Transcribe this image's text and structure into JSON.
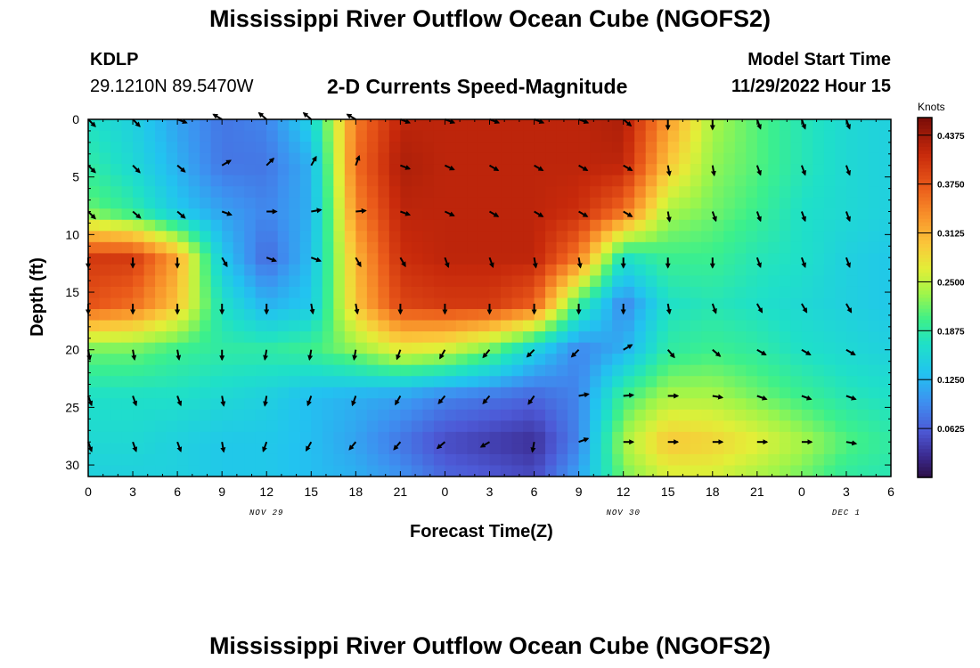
{
  "titles": {
    "top": "Mississippi River Outflow Ocean Cube (NGOFS2)",
    "bottom": "Mississippi River Outflow Ocean Cube (NGOFS2)"
  },
  "station": {
    "id": "KDLP",
    "coords": "29.1210N  89.5470W"
  },
  "model": {
    "label": "Model Start Time",
    "value": "11/29/2022 Hour 15"
  },
  "chart_data": {
    "type": "heatmap",
    "title": "2-D Currents Speed-Magnitude",
    "xlabel": "Forecast Time(Z)",
    "ylabel": "Depth (ft)",
    "x_tick_labels": [
      "0",
      "3",
      "6",
      "9",
      "12",
      "15",
      "18",
      "21",
      "0",
      "3",
      "6",
      "9",
      "12",
      "15",
      "18",
      "21",
      "0",
      "3",
      "6"
    ],
    "x_range_hours": [
      0,
      54
    ],
    "date_labels": [
      {
        "text": "NOV 29",
        "hour": 12
      },
      {
        "text": "NOV 30",
        "hour": 36
      },
      {
        "text": "DEC 1",
        "hour": 51
      }
    ],
    "y_ticks": [
      0,
      5,
      10,
      15,
      20,
      25,
      30
    ],
    "y_range": [
      0,
      31
    ],
    "y_inverted": true,
    "colorbar": {
      "unit": "Knots",
      "tick_labels": [
        "0.4375",
        "0.3750",
        "0.3125",
        "0.2500",
        "0.1875",
        "0.1250",
        "0.0625"
      ],
      "tick_values": [
        0.4375,
        0.375,
        0.3125,
        0.25,
        0.1875,
        0.125,
        0.0625
      ],
      "range": [
        0.0,
        0.46
      ]
    },
    "grid_x_hours": [
      0,
      3,
      6,
      9,
      12,
      15,
      18,
      21,
      24,
      27,
      30,
      33,
      36,
      39,
      42,
      45,
      48,
      51,
      54
    ],
    "grid_y_depths": [
      0,
      4,
      8,
      12,
      16,
      20,
      24,
      28,
      31
    ],
    "speed_knots": [
      [
        0.17,
        0.15,
        0.11,
        0.08,
        0.09,
        0.15,
        0.35,
        0.42,
        0.42,
        0.42,
        0.42,
        0.42,
        0.43,
        0.33,
        0.24,
        0.21,
        0.18,
        0.16,
        0.15
      ],
      [
        0.19,
        0.16,
        0.12,
        0.08,
        0.08,
        0.12,
        0.36,
        0.43,
        0.42,
        0.42,
        0.42,
        0.42,
        0.42,
        0.3,
        0.23,
        0.21,
        0.18,
        0.16,
        0.15
      ],
      [
        0.22,
        0.19,
        0.14,
        0.11,
        0.09,
        0.12,
        0.34,
        0.42,
        0.42,
        0.42,
        0.42,
        0.41,
        0.36,
        0.24,
        0.22,
        0.2,
        0.17,
        0.16,
        0.15
      ],
      [
        0.4,
        0.4,
        0.32,
        0.14,
        0.07,
        0.13,
        0.31,
        0.41,
        0.42,
        0.42,
        0.42,
        0.35,
        0.17,
        0.2,
        0.2,
        0.18,
        0.17,
        0.15,
        0.14
      ],
      [
        0.38,
        0.36,
        0.3,
        0.17,
        0.12,
        0.14,
        0.3,
        0.39,
        0.4,
        0.4,
        0.37,
        0.2,
        0.09,
        0.17,
        0.18,
        0.17,
        0.16,
        0.15,
        0.14
      ],
      [
        0.22,
        0.22,
        0.2,
        0.19,
        0.19,
        0.2,
        0.23,
        0.27,
        0.26,
        0.22,
        0.15,
        0.09,
        0.12,
        0.19,
        0.2,
        0.19,
        0.17,
        0.16,
        0.15
      ],
      [
        0.17,
        0.17,
        0.17,
        0.16,
        0.15,
        0.13,
        0.12,
        0.11,
        0.09,
        0.08,
        0.07,
        0.09,
        0.2,
        0.24,
        0.24,
        0.22,
        0.2,
        0.18,
        0.17
      ],
      [
        0.16,
        0.16,
        0.15,
        0.14,
        0.14,
        0.13,
        0.11,
        0.08,
        0.05,
        0.04,
        0.03,
        0.09,
        0.24,
        0.3,
        0.29,
        0.27,
        0.24,
        0.21,
        0.19
      ],
      [
        0.15,
        0.15,
        0.15,
        0.14,
        0.14,
        0.13,
        0.12,
        0.1,
        0.07,
        0.06,
        0.05,
        0.11,
        0.22,
        0.26,
        0.26,
        0.24,
        0.22,
        0.19,
        0.18
      ]
    ],
    "vector_depths": [
      0,
      4,
      8,
      12,
      16,
      20,
      24,
      28
    ],
    "vector_x_hours": [
      0,
      3,
      6,
      9,
      12,
      15,
      18,
      21,
      24,
      27,
      30,
      33,
      36,
      39,
      42,
      45,
      48,
      51
    ],
    "vector_direction_deg": [
      [
        135,
        135,
        110,
        300,
        310,
        310,
        300,
        110,
        110,
        110,
        110,
        110,
        130,
        180,
        180,
        160,
        160,
        160
      ],
      [
        135,
        135,
        130,
        60,
        45,
        30,
        20,
        110,
        115,
        120,
        120,
        120,
        120,
        170,
        170,
        160,
        160,
        160
      ],
      [
        135,
        130,
        130,
        110,
        90,
        80,
        85,
        110,
        115,
        120,
        120,
        120,
        120,
        170,
        160,
        160,
        160,
        160
      ],
      [
        180,
        180,
        180,
        150,
        110,
        110,
        150,
        150,
        160,
        160,
        170,
        170,
        180,
        180,
        180,
        160,
        160,
        160
      ],
      [
        180,
        180,
        180,
        180,
        180,
        170,
        170,
        180,
        180,
        180,
        180,
        180,
        180,
        170,
        160,
        150,
        150,
        150
      ],
      [
        170,
        170,
        170,
        180,
        190,
        190,
        190,
        200,
        210,
        220,
        225,
        225,
        60,
        140,
        130,
        120,
        120,
        120
      ],
      [
        160,
        160,
        160,
        170,
        190,
        200,
        200,
        210,
        220,
        220,
        215,
        80,
        85,
        90,
        100,
        110,
        110,
        110
      ],
      [
        160,
        160,
        160,
        170,
        200,
        210,
        220,
        220,
        230,
        240,
        190,
        70,
        90,
        90,
        90,
        90,
        90,
        100
      ]
    ]
  }
}
